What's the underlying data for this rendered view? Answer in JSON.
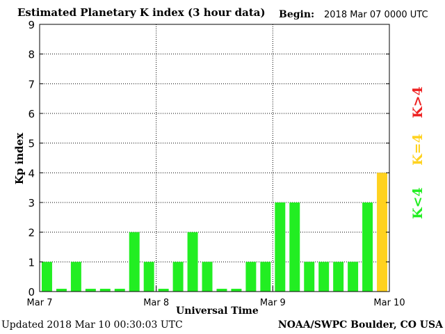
{
  "header": {
    "title": "Estimated Planetary K index (3 hour data)",
    "begin_label": "Begin:",
    "begin_value": "2018 Mar 07 0000 UTC"
  },
  "footer": {
    "updated": "Updated 2018 Mar 10 00:30:03 UTC",
    "credit": "NOAA/SWPC Boulder, CO USA"
  },
  "legend": {
    "below": {
      "label": "K<4",
      "color": "#22ee22"
    },
    "equal": {
      "label": "K=4",
      "color": "#ffd21f"
    },
    "above": {
      "label": "K>4",
      "color": "#ee2222"
    }
  },
  "chart_data": {
    "type": "bar",
    "title": "Estimated Planetary K index (3 hour data)",
    "xlabel": "Universal Time",
    "ylabel": "Kp index",
    "ylim": [
      0,
      9
    ],
    "yticks": [
      0,
      1,
      2,
      3,
      4,
      5,
      6,
      7,
      8,
      9
    ],
    "xticks": [
      "Mar 7",
      "Mar 8",
      "Mar 9",
      "Mar 10"
    ],
    "grid": "dotted at integer Kp levels and day boundaries",
    "legend_placement": "right, vertical",
    "values": [
      1,
      0,
      1,
      0,
      0,
      0,
      2,
      1,
      0,
      1,
      2,
      1,
      0,
      0,
      1,
      1,
      3,
      3,
      1,
      1,
      1,
      1,
      3,
      4
    ]
  }
}
